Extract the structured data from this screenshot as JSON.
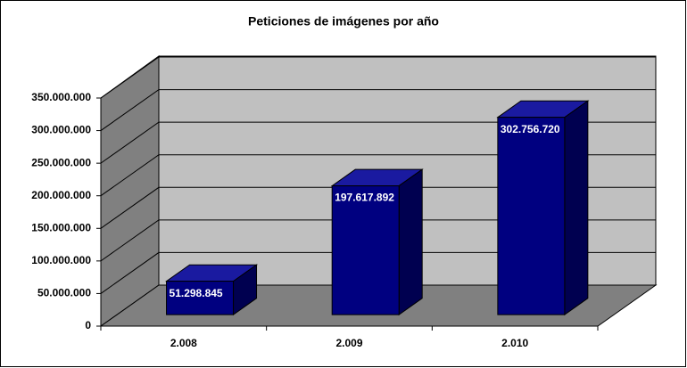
{
  "chart_data": {
    "type": "bar3d",
    "title": "Peticiones de imágenes por año",
    "categories": [
      "2.008",
      "2.009",
      "2.010"
    ],
    "values": [
      51298845,
      197617892,
      302756720
    ],
    "value_labels": [
      "51.298.845",
      "197.617.892",
      "302.756.720"
    ],
    "color": "#000080",
    "ylim": [
      0,
      350000000
    ],
    "yticks": [
      0,
      {
        "value": 50000000,
        "label": "50.000.000"
      },
      {
        "value": 100000000,
        "label": "100.000.000"
      },
      {
        "value": 150000000,
        "label": "150.000.000"
      },
      {
        "value": 200000000,
        "label": "200.000.000"
      },
      {
        "value": 250000000,
        "label": "250.000.000"
      },
      {
        "value": 300000000,
        "label": "300.000.000"
      },
      {
        "value": 350000000,
        "label": "350.000.000"
      }
    ],
    "grid": true
  }
}
